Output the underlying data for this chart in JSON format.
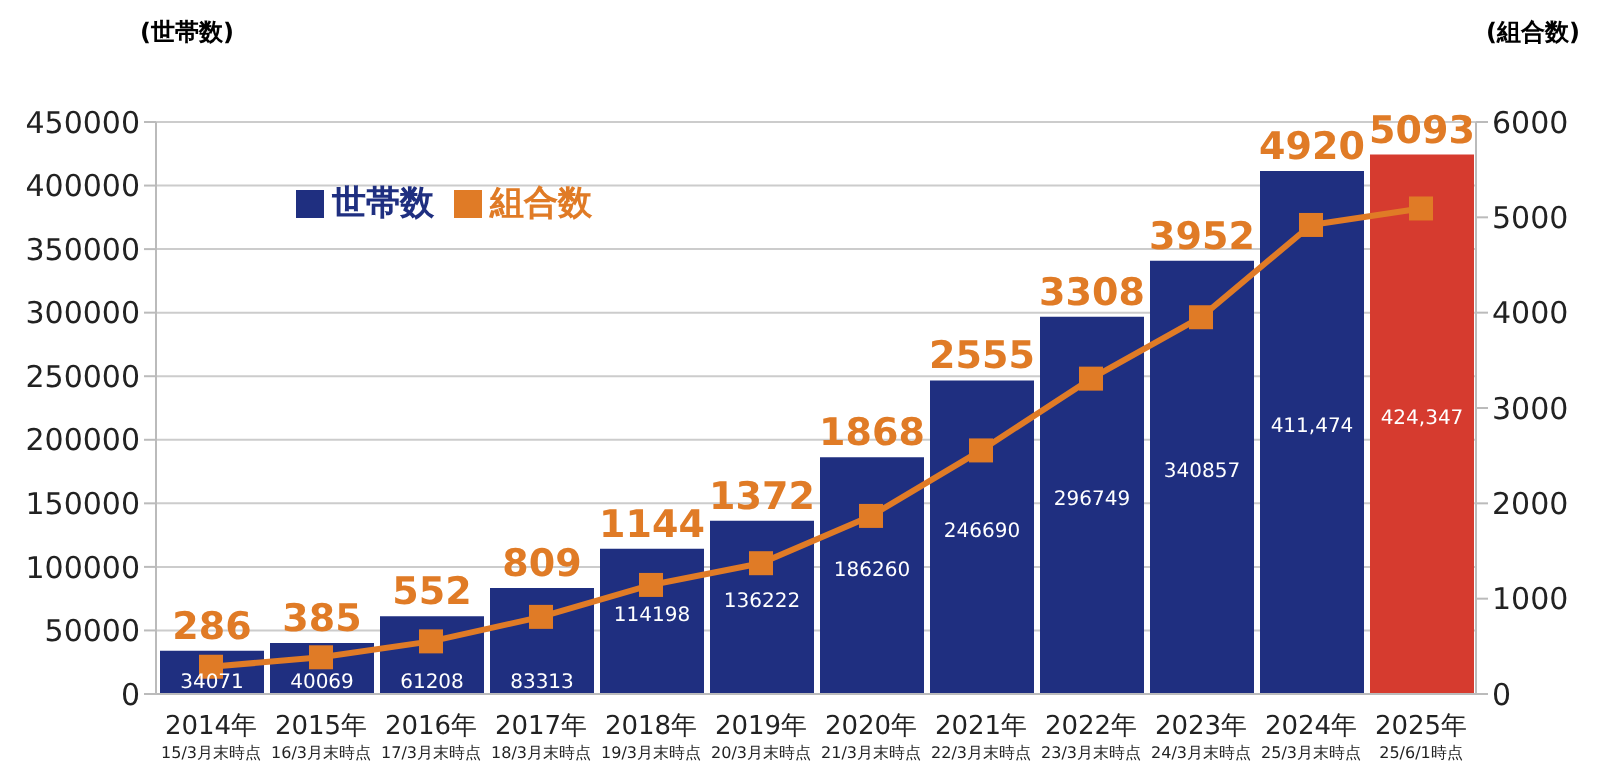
{
  "chart_data": {
    "type": "bar",
    "ylabel": "(世帯数)",
    "y2label": "(組合数)",
    "categories": [
      "2014年\n15/3月末時点",
      "2015年\n16/3月末時点",
      "2016年\n17/3月末時点",
      "2017年\n18/3月末時点",
      "2018年\n19/3月末時点",
      "2019年\n20/3月末時点",
      "2020年\n21/3月末時点",
      "2021年\n22/3月末時点",
      "2022年\n23/3月末時点",
      "2023年\n24/3月末時点",
      "2024年\n25/3月末時点",
      "2025年\n25/6/1時点"
    ],
    "series": [
      {
        "name": "世帯数",
        "color": "#1f2f80",
        "colors": [
          "#1f2f80",
          "#1f2f80",
          "#1f2f80",
          "#1f2f80",
          "#1f2f80",
          "#1f2f80",
          "#1f2f80",
          "#1f2f80",
          "#1f2f80",
          "#1f2f80",
          "#1f2f80",
          "#d63b2f"
        ],
        "values": [
          34071,
          40069,
          61208,
          83313,
          114198,
          136222,
          186260,
          246690,
          296749,
          340857,
          411474,
          424347
        ],
        "value_labels": [
          "34071",
          "40069",
          "61208",
          "83313",
          "114198",
          "136222",
          "186260",
          "246690",
          "296749",
          "340857",
          "411,474",
          "424,347"
        ]
      },
      {
        "name": "組合数",
        "type": "line",
        "axis": "y2",
        "color": "#e07b26",
        "marker": "square",
        "values": [
          286,
          385,
          552,
          809,
          1144,
          1372,
          1868,
          2555,
          3308,
          3952,
          4920,
          5093
        ],
        "value_labels": [
          "286",
          "385",
          "552",
          "809",
          "1144",
          "1372",
          "1868",
          "2555",
          "3308",
          "3952",
          "4920",
          "5093"
        ]
      }
    ],
    "ylim": [
      0,
      450000
    ],
    "yticks": [
      0,
      50000,
      100000,
      150000,
      200000,
      250000,
      300000,
      350000,
      400000,
      450000
    ],
    "y2lim": [
      0,
      6000
    ],
    "y2ticks": [
      0,
      1000,
      2000,
      3000,
      4000,
      5000,
      6000
    ],
    "grid": "y",
    "legend": "top left"
  }
}
